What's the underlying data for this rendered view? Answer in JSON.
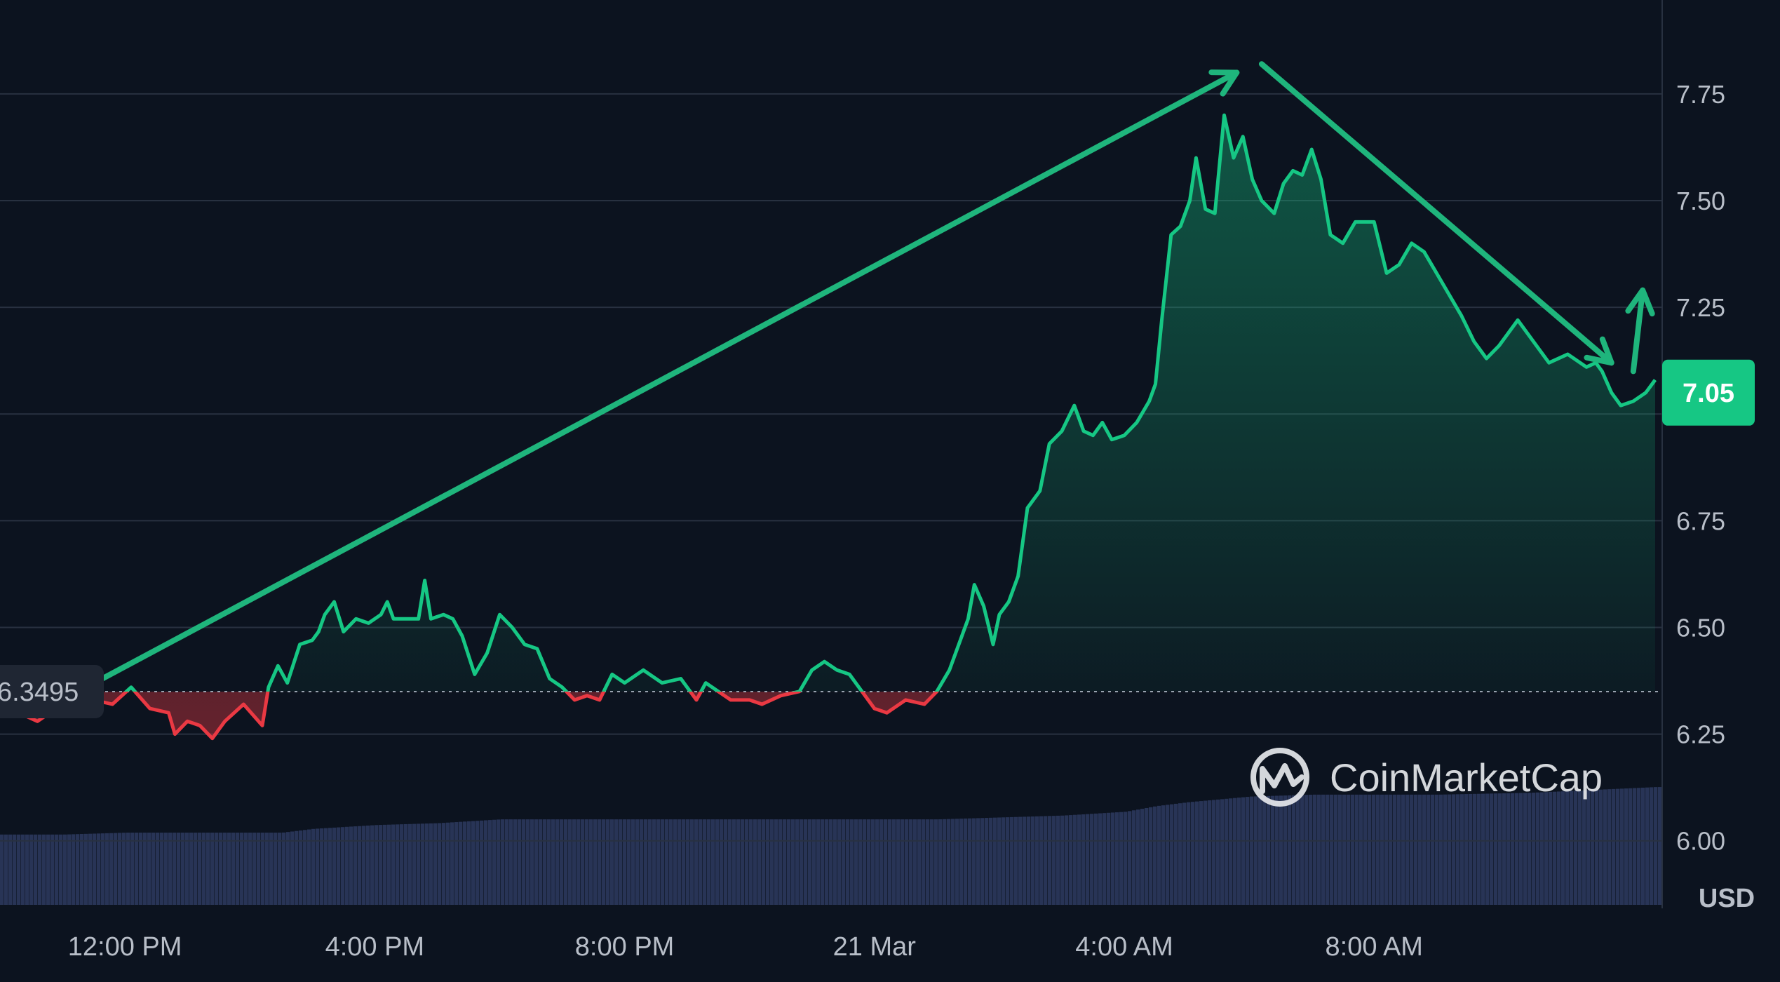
{
  "chart_data": {
    "type": "area",
    "currency": "USD",
    "watermark": "CoinMarketCap",
    "current_price_label": "7.05",
    "baseline_label": "6.3495",
    "baseline": 6.3495,
    "ylim": [
      5.85,
      7.97
    ],
    "y_ticks": [
      "6.00",
      "6.25",
      "6.50",
      "6.75",
      "7.00",
      "7.25",
      "7.50",
      "7.75"
    ],
    "x_tick_labels": [
      "12:00 PM",
      "4:00 PM",
      "8:00 PM",
      "21 Mar",
      "4:00 AM",
      "8:00 AM"
    ],
    "x_tick_hours": [
      2,
      6,
      10,
      14,
      18,
      22
    ],
    "x_range_hours": [
      0,
      23.5
    ],
    "series": [
      {
        "values": [
          [
            0,
            6.33
          ],
          [
            0.3,
            6.3
          ],
          [
            0.6,
            6.28
          ],
          [
            0.9,
            6.31
          ],
          [
            1.2,
            6.3
          ],
          [
            1.5,
            6.33
          ],
          [
            1.8,
            6.32
          ],
          [
            2.1,
            6.36
          ],
          [
            2.4,
            6.31
          ],
          [
            2.7,
            6.3
          ],
          [
            2.8,
            6.25
          ],
          [
            3.0,
            6.28
          ],
          [
            3.2,
            6.27
          ],
          [
            3.4,
            6.24
          ],
          [
            3.6,
            6.28
          ],
          [
            3.9,
            6.32
          ],
          [
            4.2,
            6.27
          ],
          [
            4.3,
            6.36
          ],
          [
            4.45,
            6.41
          ],
          [
            4.6,
            6.37
          ],
          [
            4.8,
            6.46
          ],
          [
            5.0,
            6.47
          ],
          [
            5.1,
            6.49
          ],
          [
            5.2,
            6.53
          ],
          [
            5.35,
            6.56
          ],
          [
            5.5,
            6.49
          ],
          [
            5.7,
            6.52
          ],
          [
            5.9,
            6.51
          ],
          [
            6.1,
            6.53
          ],
          [
            6.2,
            6.56
          ],
          [
            6.3,
            6.52
          ],
          [
            6.5,
            6.52
          ],
          [
            6.7,
            6.52
          ],
          [
            6.8,
            6.61
          ],
          [
            6.9,
            6.52
          ],
          [
            7.1,
            6.53
          ],
          [
            7.25,
            6.52
          ],
          [
            7.4,
            6.48
          ],
          [
            7.6,
            6.39
          ],
          [
            7.8,
            6.44
          ],
          [
            8.0,
            6.53
          ],
          [
            8.2,
            6.5
          ],
          [
            8.4,
            6.46
          ],
          [
            8.6,
            6.45
          ],
          [
            8.8,
            6.38
          ],
          [
            9.0,
            6.36
          ],
          [
            9.2,
            6.33
          ],
          [
            9.4,
            6.34
          ],
          [
            9.6,
            6.33
          ],
          [
            9.8,
            6.39
          ],
          [
            10.0,
            6.37
          ],
          [
            10.3,
            6.4
          ],
          [
            10.6,
            6.37
          ],
          [
            10.9,
            6.38
          ],
          [
            11.0,
            6.36
          ],
          [
            11.15,
            6.33
          ],
          [
            11.3,
            6.37
          ],
          [
            11.5,
            6.35
          ],
          [
            11.7,
            6.33
          ],
          [
            12.0,
            6.33
          ],
          [
            12.2,
            6.32
          ],
          [
            12.5,
            6.34
          ],
          [
            12.8,
            6.35
          ],
          [
            13.0,
            6.4
          ],
          [
            13.2,
            6.42
          ],
          [
            13.4,
            6.4
          ],
          [
            13.6,
            6.39
          ],
          [
            13.8,
            6.35
          ],
          [
            14.0,
            6.31
          ],
          [
            14.2,
            6.3
          ],
          [
            14.5,
            6.33
          ],
          [
            14.8,
            6.32
          ],
          [
            15.0,
            6.35
          ],
          [
            15.2,
            6.4
          ],
          [
            15.4,
            6.48
          ],
          [
            15.5,
            6.52
          ],
          [
            15.6,
            6.6
          ],
          [
            15.75,
            6.55
          ],
          [
            15.9,
            6.46
          ],
          [
            16.0,
            6.53
          ],
          [
            16.15,
            6.56
          ],
          [
            16.3,
            6.62
          ],
          [
            16.45,
            6.78
          ],
          [
            16.65,
            6.82
          ],
          [
            16.8,
            6.93
          ],
          [
            17.0,
            6.96
          ],
          [
            17.2,
            7.02
          ],
          [
            17.35,
            6.96
          ],
          [
            17.5,
            6.95
          ],
          [
            17.65,
            6.98
          ],
          [
            17.8,
            6.94
          ],
          [
            18.0,
            6.95
          ],
          [
            18.2,
            6.98
          ],
          [
            18.4,
            7.03
          ],
          [
            18.5,
            7.07
          ],
          [
            18.6,
            7.22
          ],
          [
            18.75,
            7.42
          ],
          [
            18.9,
            7.44
          ],
          [
            19.05,
            7.5
          ],
          [
            19.15,
            7.6
          ],
          [
            19.3,
            7.48
          ],
          [
            19.45,
            7.47
          ],
          [
            19.6,
            7.7
          ],
          [
            19.75,
            7.6
          ],
          [
            19.9,
            7.65
          ],
          [
            20.05,
            7.55
          ],
          [
            20.2,
            7.5
          ],
          [
            20.4,
            7.47
          ],
          [
            20.55,
            7.54
          ],
          [
            20.7,
            7.57
          ],
          [
            20.85,
            7.56
          ],
          [
            21.0,
            7.62
          ],
          [
            21.15,
            7.55
          ],
          [
            21.3,
            7.42
          ],
          [
            21.5,
            7.4
          ],
          [
            21.7,
            7.45
          ],
          [
            22.0,
            7.45
          ],
          [
            22.2,
            7.33
          ],
          [
            22.4,
            7.35
          ],
          [
            22.6,
            7.4
          ],
          [
            22.8,
            7.38
          ],
          [
            23.0,
            7.33
          ],
          [
            23.2,
            7.28
          ],
          [
            23.4,
            7.23
          ],
          [
            23.6,
            7.17
          ],
          [
            23.8,
            7.13
          ],
          [
            24.0,
            7.16
          ],
          [
            24.3,
            7.22
          ],
          [
            24.5,
            7.18
          ],
          [
            24.8,
            7.12
          ],
          [
            25.1,
            7.14
          ],
          [
            25.4,
            7.11
          ],
          [
            25.55,
            7.12
          ],
          [
            25.65,
            7.1
          ],
          [
            25.8,
            7.05
          ],
          [
            25.95,
            7.02
          ],
          [
            26.15,
            7.03
          ],
          [
            26.35,
            7.05
          ],
          [
            26.5,
            7.08
          ]
        ]
      }
    ],
    "volume": {
      "values": [
        [
          0,
          0.37
        ],
        [
          1,
          0.37
        ],
        [
          2,
          0.38
        ],
        [
          3,
          0.38
        ],
        [
          4.5,
          0.38
        ],
        [
          5,
          0.4
        ],
        [
          6,
          0.42
        ],
        [
          7,
          0.43
        ],
        [
          8,
          0.45
        ],
        [
          10,
          0.45
        ],
        [
          12,
          0.45
        ],
        [
          14,
          0.45
        ],
        [
          15,
          0.45
        ],
        [
          16,
          0.46
        ],
        [
          17,
          0.47
        ],
        [
          18,
          0.49
        ],
        [
          18.5,
          0.52
        ],
        [
          19,
          0.54
        ],
        [
          20,
          0.57
        ],
        [
          21,
          0.58
        ],
        [
          23,
          0.58
        ],
        [
          24.5,
          0.59
        ],
        [
          26.5,
          0.62
        ]
      ]
    },
    "annotations": [
      {
        "type": "arrow",
        "from": [
          1.0,
          6.33
        ],
        "to": [
          19.8,
          7.8
        ]
      },
      {
        "type": "arrow",
        "from": [
          20.2,
          7.82
        ],
        "to": [
          25.8,
          7.12
        ]
      },
      {
        "type": "arrow",
        "from": [
          26.15,
          7.1
        ],
        "to": [
          26.3,
          7.29
        ]
      }
    ],
    "colors": {
      "background": "#0c131f",
      "up": "#16c784",
      "down": "#ea3943",
      "grid": "#283140",
      "volume": "#283456",
      "price_tag": "#16c784",
      "annotation": "#1fb57c",
      "tick_text": "#b8bec8"
    }
  }
}
